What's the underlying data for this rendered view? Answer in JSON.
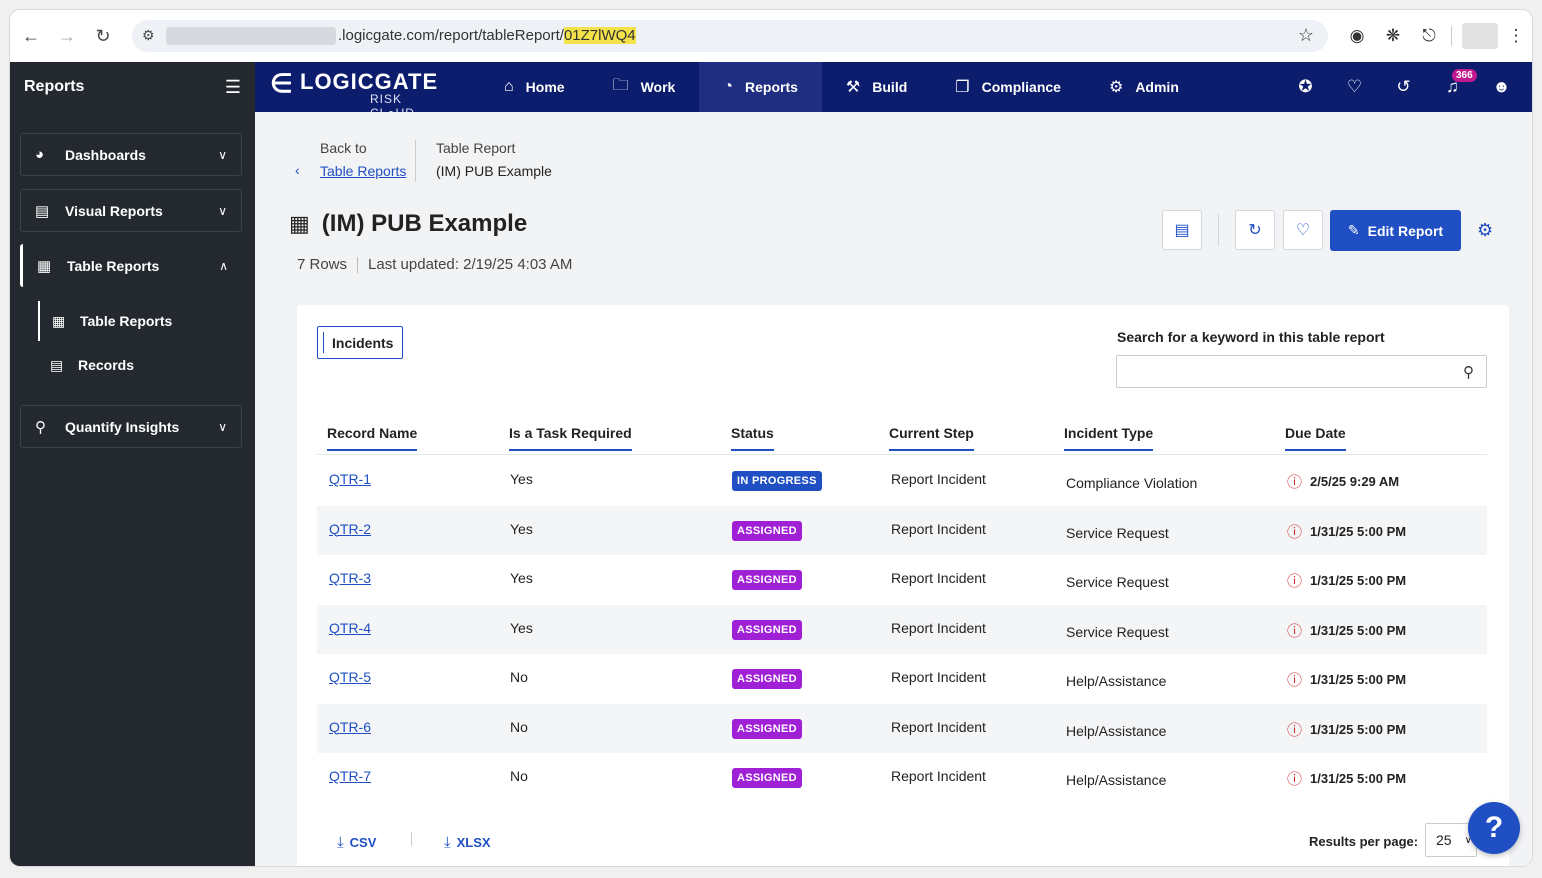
{
  "browser": {
    "url_prefix": ".logicgate.com/report/tableReport/",
    "url_highlight": "01Z7lWQ4"
  },
  "app": {
    "logo_main": "LOGICGATE",
    "logo_sub": "RISK CL●UD",
    "sidebar_title": "Reports",
    "nav": [
      {
        "label": "Home",
        "icon": "home-icon"
      },
      {
        "label": "Work",
        "icon": "folder-icon"
      },
      {
        "label": "Reports",
        "icon": "pie-chart-icon"
      },
      {
        "label": "Build",
        "icon": "wrench-icon"
      },
      {
        "label": "Compliance",
        "icon": "copy-icon"
      },
      {
        "label": "Admin",
        "icon": "gear-icon"
      }
    ],
    "notification_count": "366"
  },
  "sidebar": {
    "groups": [
      {
        "label": "Dashboards"
      },
      {
        "label": "Visual Reports"
      },
      {
        "label": "Table Reports"
      },
      {
        "label": "Quantify Insights"
      }
    ],
    "sub_items": [
      {
        "label": "Table Reports"
      },
      {
        "label": "Records"
      }
    ]
  },
  "breadcrumb": {
    "back_label": "Back to",
    "back_link": "Table Reports",
    "type_label": "Table Report",
    "current": "(IM) PUB Example"
  },
  "page": {
    "title": "(IM) PUB Example",
    "rows_count": "7 Rows",
    "last_updated": "Last updated: 2/19/25 4:03 AM",
    "edit_label": "Edit Report"
  },
  "card": {
    "tab_label": "Incidents",
    "search_label": "Search for a keyword in this table report",
    "search_value": "",
    "columns": [
      "Record Name",
      "Is a Task Required",
      "Status",
      "Current Step",
      "Incident Type",
      "Due Date"
    ],
    "rows": [
      {
        "name": "QTR-1",
        "task": "Yes",
        "status": "IN PROGRESS",
        "step": "Report Incident",
        "type": "Compliance Violation",
        "due": "2/5/25 9:29 AM"
      },
      {
        "name": "QTR-2",
        "task": "Yes",
        "status": "ASSIGNED",
        "step": "Report Incident",
        "type": "Service Request",
        "due": "1/31/25 5:00 PM"
      },
      {
        "name": "QTR-3",
        "task": "Yes",
        "status": "ASSIGNED",
        "step": "Report Incident",
        "type": "Service Request",
        "due": "1/31/25 5:00 PM"
      },
      {
        "name": "QTR-4",
        "task": "Yes",
        "status": "ASSIGNED",
        "step": "Report Incident",
        "type": "Service Request",
        "due": "1/31/25 5:00 PM"
      },
      {
        "name": "QTR-5",
        "task": "No",
        "status": "ASSIGNED",
        "step": "Report Incident",
        "type": "Help/Assistance",
        "due": "1/31/25 5:00 PM"
      },
      {
        "name": "QTR-6",
        "task": "No",
        "status": "ASSIGNED",
        "step": "Report Incident",
        "type": "Help/Assistance",
        "due": "1/31/25 5:00 PM"
      },
      {
        "name": "QTR-7",
        "task": "No",
        "status": "ASSIGNED",
        "step": "Report Incident",
        "type": "Help/Assistance",
        "due": "1/31/25 5:00 PM"
      }
    ],
    "export_csv": "CSV",
    "export_xlsx": "XLSX",
    "results_label": "Results per page:",
    "results_value": "25"
  },
  "help_label": "?",
  "colors": {
    "nav_bg": "#0d1d6d",
    "sidebar_bg": "#23292f",
    "accent": "#1f4fc2",
    "status_in_progress": "#1f4fc2",
    "status_assigned": "#a020d6",
    "overdue": "#d42a2a"
  }
}
